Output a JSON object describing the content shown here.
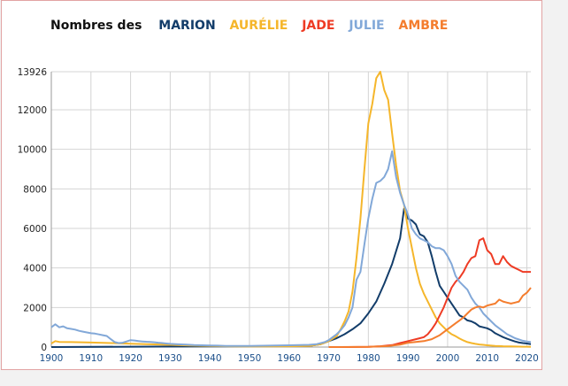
{
  "chart_data": {
    "type": "line",
    "title_prefix": "Nombres des",
    "xlim": [
      1900,
      2021
    ],
    "ylim": [
      0,
      13926
    ],
    "y_ticks": [
      0,
      2000,
      4000,
      6000,
      8000,
      10000,
      12000,
      13926
    ],
    "y_tick_labels": [
      "0",
      "2000",
      "4000",
      "6000",
      "8000",
      "10000",
      "12000",
      "13926"
    ],
    "x_ticks": [
      1900,
      1910,
      1920,
      1930,
      1940,
      1950,
      1960,
      1970,
      1980,
      1990,
      2000,
      2010,
      2020
    ],
    "x_tick_labels": [
      "1900",
      "1910",
      "1920",
      "1930",
      "1940",
      "1950",
      "1960",
      "1970",
      "1980",
      "1990",
      "2000",
      "2010",
      "2020"
    ],
    "grid": true,
    "legend_position": "top",
    "series": [
      {
        "name": "MARION",
        "color": "#133d6a",
        "points": [
          [
            1900,
            0
          ],
          [
            1965,
            60
          ],
          [
            1968,
            150
          ],
          [
            1970,
            300
          ],
          [
            1972,
            450
          ],
          [
            1974,
            650
          ],
          [
            1976,
            900
          ],
          [
            1978,
            1200
          ],
          [
            1980,
            1700
          ],
          [
            1982,
            2300
          ],
          [
            1984,
            3200
          ],
          [
            1986,
            4200
          ],
          [
            1988,
            5500
          ],
          [
            1989,
            7000
          ],
          [
            1990,
            6500
          ],
          [
            1991,
            6400
          ],
          [
            1992,
            6200
          ],
          [
            1993,
            5700
          ],
          [
            1994,
            5600
          ],
          [
            1995,
            5300
          ],
          [
            1996,
            4600
          ],
          [
            1997,
            3800
          ],
          [
            1998,
            3100
          ],
          [
            1999,
            2800
          ],
          [
            2000,
            2500
          ],
          [
            2001,
            2200
          ],
          [
            2002,
            1900
          ],
          [
            2003,
            1600
          ],
          [
            2004,
            1500
          ],
          [
            2005,
            1350
          ],
          [
            2006,
            1300
          ],
          [
            2007,
            1200
          ],
          [
            2008,
            1050
          ],
          [
            2009,
            1000
          ],
          [
            2010,
            950
          ],
          [
            2011,
            850
          ],
          [
            2012,
            700
          ],
          [
            2013,
            600
          ],
          [
            2014,
            500
          ],
          [
            2015,
            420
          ],
          [
            2016,
            350
          ],
          [
            2017,
            280
          ],
          [
            2018,
            230
          ],
          [
            2019,
            200
          ],
          [
            2020,
            180
          ],
          [
            2021,
            150
          ]
        ]
      },
      {
        "name": "AURÉLIE",
        "color": "#f5b62b",
        "points": [
          [
            1900,
            180
          ],
          [
            1901,
            300
          ],
          [
            1902,
            260
          ],
          [
            1905,
            250
          ],
          [
            1910,
            230
          ],
          [
            1915,
            200
          ],
          [
            1920,
            170
          ],
          [
            1925,
            140
          ],
          [
            1930,
            110
          ],
          [
            1935,
            80
          ],
          [
            1940,
            60
          ],
          [
            1945,
            40
          ],
          [
            1950,
            30
          ],
          [
            1955,
            30
          ],
          [
            1960,
            40
          ],
          [
            1965,
            60
          ],
          [
            1968,
            150
          ],
          [
            1970,
            300
          ],
          [
            1972,
            550
          ],
          [
            1973,
            900
          ],
          [
            1974,
            1300
          ],
          [
            1975,
            1800
          ],
          [
            1976,
            2800
          ],
          [
            1977,
            4500
          ],
          [
            1978,
            6500
          ],
          [
            1979,
            9000
          ],
          [
            1980,
            11300
          ],
          [
            1981,
            12300
          ],
          [
            1982,
            13600
          ],
          [
            1983,
            13926
          ],
          [
            1984,
            13000
          ],
          [
            1985,
            12500
          ],
          [
            1986,
            10800
          ],
          [
            1987,
            9200
          ],
          [
            1988,
            7900
          ],
          [
            1989,
            7200
          ],
          [
            1990,
            6000
          ],
          [
            1991,
            5000
          ],
          [
            1992,
            4000
          ],
          [
            1993,
            3200
          ],
          [
            1994,
            2700
          ],
          [
            1995,
            2300
          ],
          [
            1996,
            1900
          ],
          [
            1997,
            1500
          ],
          [
            1998,
            1200
          ],
          [
            1999,
            1000
          ],
          [
            2000,
            800
          ],
          [
            2001,
            650
          ],
          [
            2002,
            550
          ],
          [
            2003,
            430
          ],
          [
            2004,
            330
          ],
          [
            2005,
            250
          ],
          [
            2006,
            200
          ],
          [
            2007,
            160
          ],
          [
            2008,
            130
          ],
          [
            2009,
            110
          ],
          [
            2010,
            90
          ],
          [
            2011,
            70
          ],
          [
            2012,
            60
          ],
          [
            2013,
            50
          ],
          [
            2014,
            40
          ],
          [
            2015,
            35
          ],
          [
            2016,
            30
          ],
          [
            2017,
            25
          ],
          [
            2018,
            22
          ],
          [
            2019,
            20
          ],
          [
            2020,
            18
          ],
          [
            2021,
            15
          ]
        ]
      },
      {
        "name": "JADE",
        "color": "#ee3b24",
        "points": [
          [
            1970,
            0
          ],
          [
            1975,
            0
          ],
          [
            1980,
            10
          ],
          [
            1983,
            40
          ],
          [
            1986,
            100
          ],
          [
            1988,
            200
          ],
          [
            1990,
            300
          ],
          [
            1992,
            400
          ],
          [
            1993,
            450
          ],
          [
            1994,
            500
          ],
          [
            1995,
            650
          ],
          [
            1996,
            900
          ],
          [
            1997,
            1200
          ],
          [
            1998,
            1600
          ],
          [
            1999,
            2000
          ],
          [
            2000,
            2500
          ],
          [
            2001,
            3000
          ],
          [
            2002,
            3300
          ],
          [
            2003,
            3500
          ],
          [
            2004,
            3800
          ],
          [
            2005,
            4200
          ],
          [
            2006,
            4500
          ],
          [
            2007,
            4600
          ],
          [
            2008,
            5400
          ],
          [
            2009,
            5500
          ],
          [
            2010,
            4900
          ],
          [
            2011,
            4700
          ],
          [
            2012,
            4200
          ],
          [
            2013,
            4200
          ],
          [
            2014,
            4600
          ],
          [
            2015,
            4300
          ],
          [
            2016,
            4100
          ],
          [
            2017,
            4000
          ],
          [
            2018,
            3900
          ],
          [
            2019,
            3800
          ],
          [
            2020,
            3800
          ],
          [
            2021,
            3800
          ]
        ]
      },
      {
        "name": "JULIE",
        "color": "#82a8d8",
        "points": [
          [
            1900,
            1000
          ],
          [
            1901,
            1150
          ],
          [
            1902,
            1000
          ],
          [
            1903,
            1050
          ],
          [
            1904,
            950
          ],
          [
            1905,
            920
          ],
          [
            1906,
            880
          ],
          [
            1907,
            820
          ],
          [
            1908,
            780
          ],
          [
            1909,
            740
          ],
          [
            1910,
            700
          ],
          [
            1911,
            680
          ],
          [
            1912,
            640
          ],
          [
            1913,
            600
          ],
          [
            1914,
            560
          ],
          [
            1915,
            400
          ],
          [
            1916,
            250
          ],
          [
            1917,
            200
          ],
          [
            1918,
            220
          ],
          [
            1919,
            280
          ],
          [
            1920,
            350
          ],
          [
            1921,
            330
          ],
          [
            1922,
            300
          ],
          [
            1923,
            280
          ],
          [
            1924,
            270
          ],
          [
            1925,
            260
          ],
          [
            1926,
            240
          ],
          [
            1927,
            220
          ],
          [
            1928,
            200
          ],
          [
            1929,
            180
          ],
          [
            1930,
            160
          ],
          [
            1932,
            140
          ],
          [
            1934,
            120
          ],
          [
            1936,
            100
          ],
          [
            1938,
            90
          ],
          [
            1940,
            80
          ],
          [
            1942,
            70
          ],
          [
            1944,
            60
          ],
          [
            1946,
            60
          ],
          [
            1948,
            55
          ],
          [
            1950,
            60
          ],
          [
            1955,
            70
          ],
          [
            1960,
            90
          ],
          [
            1965,
            110
          ],
          [
            1967,
            150
          ],
          [
            1969,
            250
          ],
          [
            1970,
            350
          ],
          [
            1971,
            500
          ],
          [
            1972,
            650
          ],
          [
            1973,
            850
          ],
          [
            1974,
            1100
          ],
          [
            1975,
            1500
          ],
          [
            1976,
            2000
          ],
          [
            1977,
            3400
          ],
          [
            1978,
            3800
          ],
          [
            1979,
            5200
          ],
          [
            1980,
            6500
          ],
          [
            1981,
            7500
          ],
          [
            1982,
            8300
          ],
          [
            1983,
            8400
          ],
          [
            1984,
            8600
          ],
          [
            1985,
            9000
          ],
          [
            1986,
            9900
          ],
          [
            1987,
            8600
          ],
          [
            1988,
            7800
          ],
          [
            1989,
            7200
          ],
          [
            1990,
            6700
          ],
          [
            1991,
            6000
          ],
          [
            1992,
            5700
          ],
          [
            1993,
            5500
          ],
          [
            1994,
            5400
          ],
          [
            1995,
            5300
          ],
          [
            1996,
            5100
          ],
          [
            1997,
            5000
          ],
          [
            1998,
            5000
          ],
          [
            1999,
            4900
          ],
          [
            2000,
            4600
          ],
          [
            2001,
            4200
          ],
          [
            2002,
            3600
          ],
          [
            2003,
            3300
          ],
          [
            2004,
            3100
          ],
          [
            2005,
            2900
          ],
          [
            2006,
            2500
          ],
          [
            2007,
            2200
          ],
          [
            2008,
            2000
          ],
          [
            2009,
            1700
          ],
          [
            2010,
            1500
          ],
          [
            2011,
            1300
          ],
          [
            2012,
            1100
          ],
          [
            2013,
            950
          ],
          [
            2014,
            800
          ],
          [
            2015,
            650
          ],
          [
            2016,
            550
          ],
          [
            2017,
            450
          ],
          [
            2018,
            380
          ],
          [
            2019,
            320
          ],
          [
            2020,
            280
          ],
          [
            2021,
            250
          ]
        ]
      },
      {
        "name": "AMBRE",
        "color": "#f47d2e",
        "points": [
          [
            1970,
            0
          ],
          [
            1980,
            10
          ],
          [
            1985,
            50
          ],
          [
            1988,
            120
          ],
          [
            1990,
            220
          ],
          [
            1992,
            260
          ],
          [
            1994,
            300
          ],
          [
            1996,
            400
          ],
          [
            1998,
            600
          ],
          [
            2000,
            900
          ],
          [
            2001,
            1050
          ],
          [
            2002,
            1200
          ],
          [
            2003,
            1350
          ],
          [
            2004,
            1500
          ],
          [
            2005,
            1700
          ],
          [
            2006,
            1900
          ],
          [
            2007,
            2000
          ],
          [
            2008,
            2050
          ],
          [
            2009,
            2000
          ],
          [
            2010,
            2100
          ],
          [
            2011,
            2150
          ],
          [
            2012,
            2200
          ],
          [
            2013,
            2400
          ],
          [
            2014,
            2300
          ],
          [
            2015,
            2250
          ],
          [
            2016,
            2200
          ],
          [
            2017,
            2250
          ],
          [
            2018,
            2300
          ],
          [
            2019,
            2600
          ],
          [
            2020,
            2750
          ],
          [
            2021,
            3000
          ]
        ]
      }
    ]
  }
}
